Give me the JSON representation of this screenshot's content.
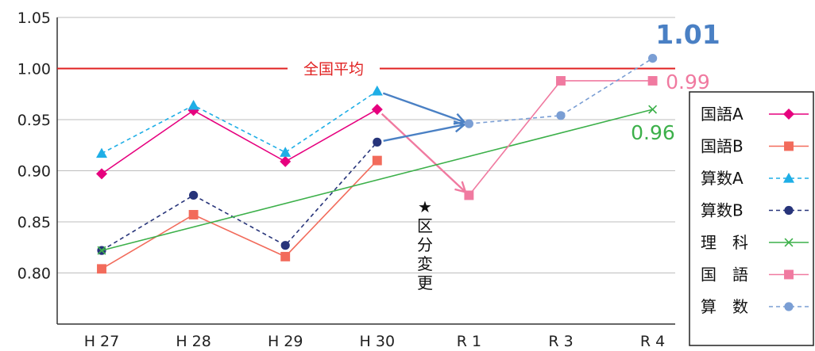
{
  "chart_data": {
    "type": "line",
    "categories": [
      "H 27",
      "H 28",
      "H 29",
      "H 30",
      "R 1",
      "R 3",
      "R 4"
    ],
    "ylim": [
      0.75,
      1.05
    ],
    "yticks": [
      "0.80",
      "0.85",
      "0.90",
      "0.95",
      "1.00",
      "1.05"
    ],
    "grid": true,
    "legend_position": "right",
    "reference_line": {
      "value": 1.0,
      "label": "全国平均",
      "color": "#e02020"
    },
    "series": [
      {
        "name": "国語A",
        "color": "#e6007e",
        "dash": false,
        "marker": "diamond",
        "values": [
          0.897,
          0.959,
          0.909,
          0.96,
          null,
          null,
          null
        ]
      },
      {
        "name": "国語B",
        "color": "#f26b5b",
        "dash": false,
        "marker": "square",
        "values": [
          0.804,
          0.857,
          0.816,
          0.91,
          null,
          null,
          null
        ]
      },
      {
        "name": "算数A",
        "color": "#1eaee6",
        "dash": true,
        "marker": "triangle",
        "values": [
          0.917,
          0.964,
          0.918,
          0.978,
          null,
          null,
          null
        ]
      },
      {
        "name": "算数B",
        "color": "#27347a",
        "dash": true,
        "marker": "circle",
        "values": [
          0.822,
          0.876,
          0.827,
          0.928,
          null,
          null,
          null
        ]
      },
      {
        "name": "理　科",
        "color": "#3cb04a",
        "dash": false,
        "marker": "x",
        "values": [
          0.822,
          null,
          null,
          null,
          null,
          null,
          0.96
        ]
      },
      {
        "name": "国　語",
        "color": "#f07aa0",
        "dash": false,
        "marker": "square",
        "values": [
          null,
          null,
          null,
          null,
          0.876,
          0.988,
          0.988
        ]
      },
      {
        "name": "算　数",
        "color": "#7a9ed4",
        "dash": true,
        "marker": "circle",
        "values": [
          null,
          null,
          null,
          null,
          0.946,
          0.954,
          1.01
        ]
      }
    ],
    "arrows": [
      {
        "from_series": "国語A",
        "from_index": 3,
        "to_series": "国　語",
        "to_index": 4,
        "color": "#f07aa0"
      },
      {
        "from_series": "算数A",
        "from_index": 3,
        "to_series": "算　数",
        "to_index": 4,
        "color": "#4a80c4"
      },
      {
        "from_series": "算数B",
        "from_index": 3,
        "to_series": "算　数",
        "to_index": 4,
        "color": "#4a80c4"
      }
    ],
    "annotations": {
      "division_change": "★区分変更",
      "value_labels": [
        {
          "text": "1.01",
          "color": "#4a80c4"
        },
        {
          "text": "0.99",
          "color": "#f07aa0"
        },
        {
          "text": "0.96",
          "color": "#3cb04a"
        }
      ]
    }
  }
}
